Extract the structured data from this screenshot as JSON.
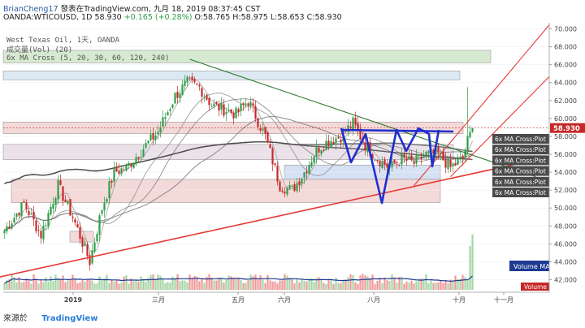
{
  "header": {
    "user": "BrianCheng17",
    "published_text": "發表在TradingView.com, 九月 18, 2019 08:37:45 CST",
    "symbol": "OANDA:WTICOUSD, 1D",
    "last": "58.930",
    "change": "+0.165 (+0.28%)",
    "ohlc": "O:58.765 H:58.975 L:58.653 C:58.930"
  },
  "legend": {
    "title": "West Texas Oil, 1天, OANDA",
    "volume": "成交量(Vol) (20)",
    "ma_cross": "6x MA Cross (5, 20, 30, 60, 120, 240)"
  },
  "footer": {
    "source": "來源於",
    "brand": "TradingView"
  },
  "colors": {
    "up_candle": "#2e9e48",
    "down_candle": "#c62828",
    "trendline_red": "#e53935",
    "trendline_green": "#2e7d32",
    "pattern_blue": "#1f2fd0",
    "ma_dark": "#555555",
    "volume_ma": "#1f3a93"
  },
  "chart_data": {
    "type": "candlestick",
    "title": "West Texas Oil, 1天, OANDA",
    "ylim": [
      41.5,
      70.5
    ],
    "y_ticks": [
      "70.000",
      "68.000",
      "66.000",
      "64.000",
      "62.000",
      "60.000",
      "58.000",
      "56.000",
      "54.000",
      "52.000",
      "50.000",
      "48.000",
      "46.000",
      "44.000",
      "42.000"
    ],
    "x_ticks": [
      "2019",
      "三月",
      "五月",
      "六月",
      "八月",
      "十月",
      "十一月"
    ],
    "last_price": "58.930",
    "close_anchors": [
      [
        0,
        47.5
      ],
      [
        8,
        50.5
      ],
      [
        15,
        47
      ],
      [
        22,
        52.5
      ],
      [
        28,
        49
      ],
      [
        35,
        44
      ],
      [
        40,
        50
      ],
      [
        45,
        54
      ],
      [
        50,
        54.5
      ],
      [
        58,
        57
      ],
      [
        63,
        58.5
      ],
      [
        70,
        62.5
      ],
      [
        75,
        64
      ],
      [
        80,
        63.5
      ],
      [
        85,
        61.5
      ],
      [
        90,
        61
      ],
      [
        95,
        60.5
      ],
      [
        100,
        62
      ],
      [
        107,
        58
      ],
      [
        113,
        52.5
      ],
      [
        118,
        52
      ],
      [
        123,
        54
      ],
      [
        128,
        56.5
      ],
      [
        133,
        57.5
      ],
      [
        138,
        58
      ],
      [
        143,
        59.5
      ],
      [
        148,
        57
      ],
      [
        153,
        55.5
      ],
      [
        158,
        54.5
      ],
      [
        163,
        55.5
      ],
      [
        168,
        55
      ],
      [
        173,
        56
      ],
      [
        178,
        56
      ],
      [
        183,
        54.5
      ],
      [
        188,
        55.5
      ],
      [
        190,
        57.5
      ],
      [
        192,
        58.9
      ]
    ],
    "volume_ma_label": "Volume MA",
    "volume_label": "Volume",
    "ma_cross_labels": [
      "6x MA Cross:Plot",
      "6x MA Cross:Plot",
      "6x MA Cross:Plot",
      "6x MA Cross:Plot",
      "6x MA Cross:Plot",
      "6x MA Cross:Plot"
    ],
    "zones": [
      {
        "low": 66.2,
        "high": 67.6,
        "color": "#cfe6c9"
      },
      {
        "low": 64.3,
        "high": 65.3,
        "color": "#d7e6f2"
      },
      {
        "low": 58.3,
        "high": 59.6,
        "color": "#f3d3d3"
      },
      {
        "low": 55.4,
        "high": 57.1,
        "color": "#e8dce6"
      },
      {
        "low": 53.2,
        "high": 54.8,
        "color": "#cfdcf2"
      },
      {
        "low": 50.6,
        "high": 53.2,
        "color": "#f3d3d3"
      },
      {
        "low": 46.2,
        "high": 47.4,
        "color": "#f3d3d3"
      }
    ],
    "trendlines": [
      {
        "name": "red-rising-support",
        "from": [
          -2,
          42.3
        ],
        "to": [
          215,
          55.2
        ]
      },
      {
        "name": "red-upper-channel-1",
        "from": [
          168,
          52.5
        ],
        "to": [
          224,
          70.6
        ]
      },
      {
        "name": "red-upper-channel-2",
        "from": [
          183,
          53.5
        ],
        "to": [
          224,
          64.8
        ]
      },
      {
        "name": "green-descending",
        "from": [
          76,
          66.6
        ],
        "to": [
          218,
          53.5
        ]
      }
    ]
  }
}
